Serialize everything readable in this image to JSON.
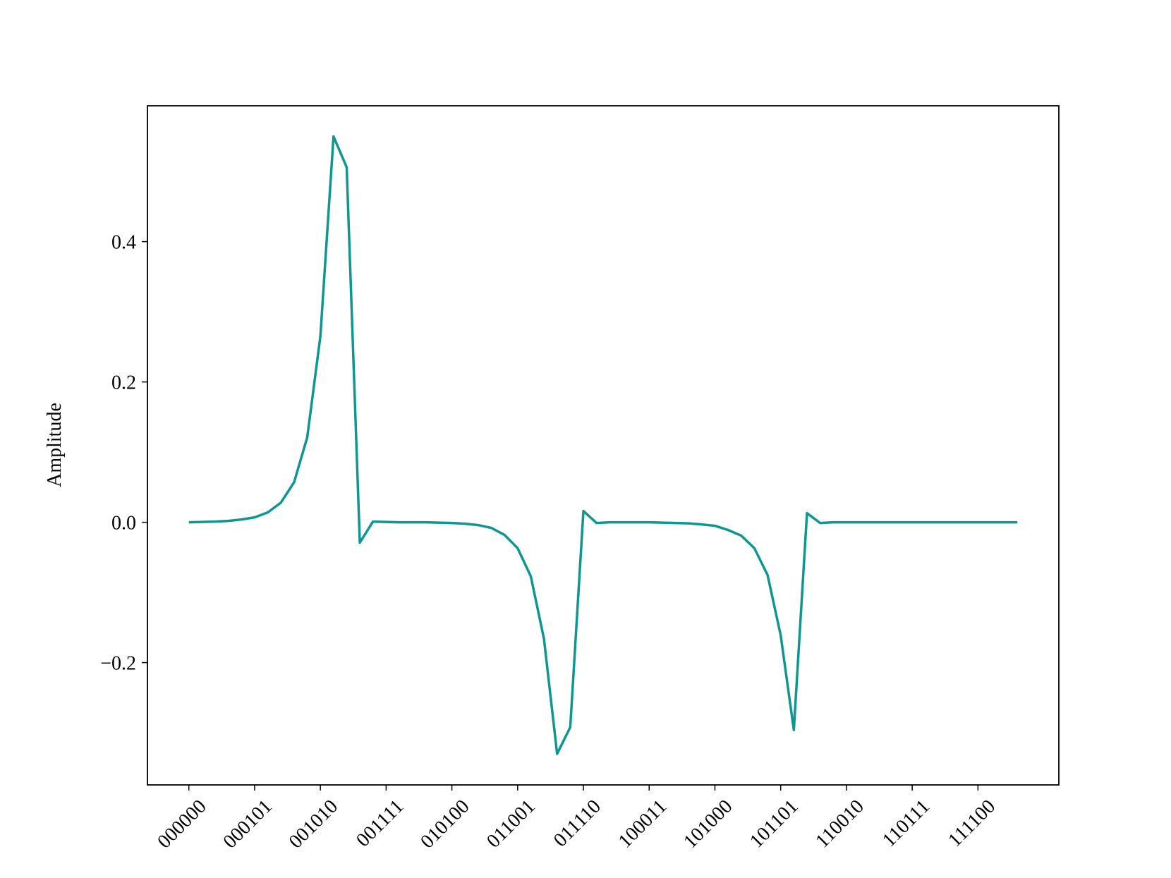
{
  "chart_data": {
    "type": "line",
    "ylabel": "Amplitude",
    "x": [
      0,
      1,
      2,
      3,
      4,
      5,
      6,
      7,
      8,
      9,
      10,
      11,
      12,
      13,
      14,
      15,
      16,
      17,
      18,
      19,
      20,
      21,
      22,
      23,
      24,
      25,
      26,
      27,
      28,
      29,
      30,
      31,
      32,
      33,
      34,
      35,
      36,
      37,
      38,
      39,
      40,
      41,
      42,
      43,
      44,
      45,
      46,
      47,
      48,
      49,
      50,
      51,
      52,
      53,
      54,
      55,
      56,
      57,
      58,
      59,
      60,
      61,
      62,
      63
    ],
    "series": [
      {
        "name": "Amplitude",
        "color": "#0e9690",
        "values": [
          0.0,
          0.0005,
          0.001,
          0.002,
          0.004,
          0.007,
          0.014,
          0.028,
          0.057,
          0.121,
          0.265,
          0.55,
          0.506,
          -0.029,
          0.001,
          0.0005,
          0.0,
          0.0,
          0.0,
          -0.0005,
          -0.001,
          -0.002,
          -0.004,
          -0.008,
          -0.018,
          -0.037,
          -0.077,
          -0.166,
          -0.33,
          -0.292,
          0.016,
          -0.001,
          0.0,
          0.0,
          0.0,
          0.0,
          -0.0005,
          -0.001,
          -0.0015,
          -0.003,
          -0.005,
          -0.011,
          -0.019,
          -0.037,
          -0.075,
          -0.161,
          -0.296,
          0.013,
          -0.001,
          0.0,
          0.0,
          0.0,
          0.0,
          0.0,
          0.0,
          0.0,
          0.0,
          0.0,
          0.0,
          0.0,
          0.0,
          0.0,
          0.0,
          0.0
        ]
      }
    ],
    "xlim": [
      -3.15,
      66.15
    ],
    "xticks": [
      {
        "value": 0,
        "label": "000000"
      },
      {
        "value": 5,
        "label": "000101"
      },
      {
        "value": 10,
        "label": "001010"
      },
      {
        "value": 15,
        "label": "001111"
      },
      {
        "value": 20,
        "label": "010100"
      },
      {
        "value": 25,
        "label": "011001"
      },
      {
        "value": 30,
        "label": "011110"
      },
      {
        "value": 35,
        "label": "100011"
      },
      {
        "value": 40,
        "label": "101000"
      },
      {
        "value": 45,
        "label": "101101"
      },
      {
        "value": 50,
        "label": "110010"
      },
      {
        "value": 55,
        "label": "110111"
      },
      {
        "value": 60,
        "label": "111100"
      }
    ],
    "ylim": [
      -0.3743,
      0.5936
    ],
    "yticks": [
      {
        "value": -0.2,
        "label": "−0.2"
      },
      {
        "value": 0,
        "label": "0.0"
      },
      {
        "value": 0.2,
        "label": "0.2"
      },
      {
        "value": 0.4,
        "label": "0.4"
      }
    ],
    "grid": false
  }
}
